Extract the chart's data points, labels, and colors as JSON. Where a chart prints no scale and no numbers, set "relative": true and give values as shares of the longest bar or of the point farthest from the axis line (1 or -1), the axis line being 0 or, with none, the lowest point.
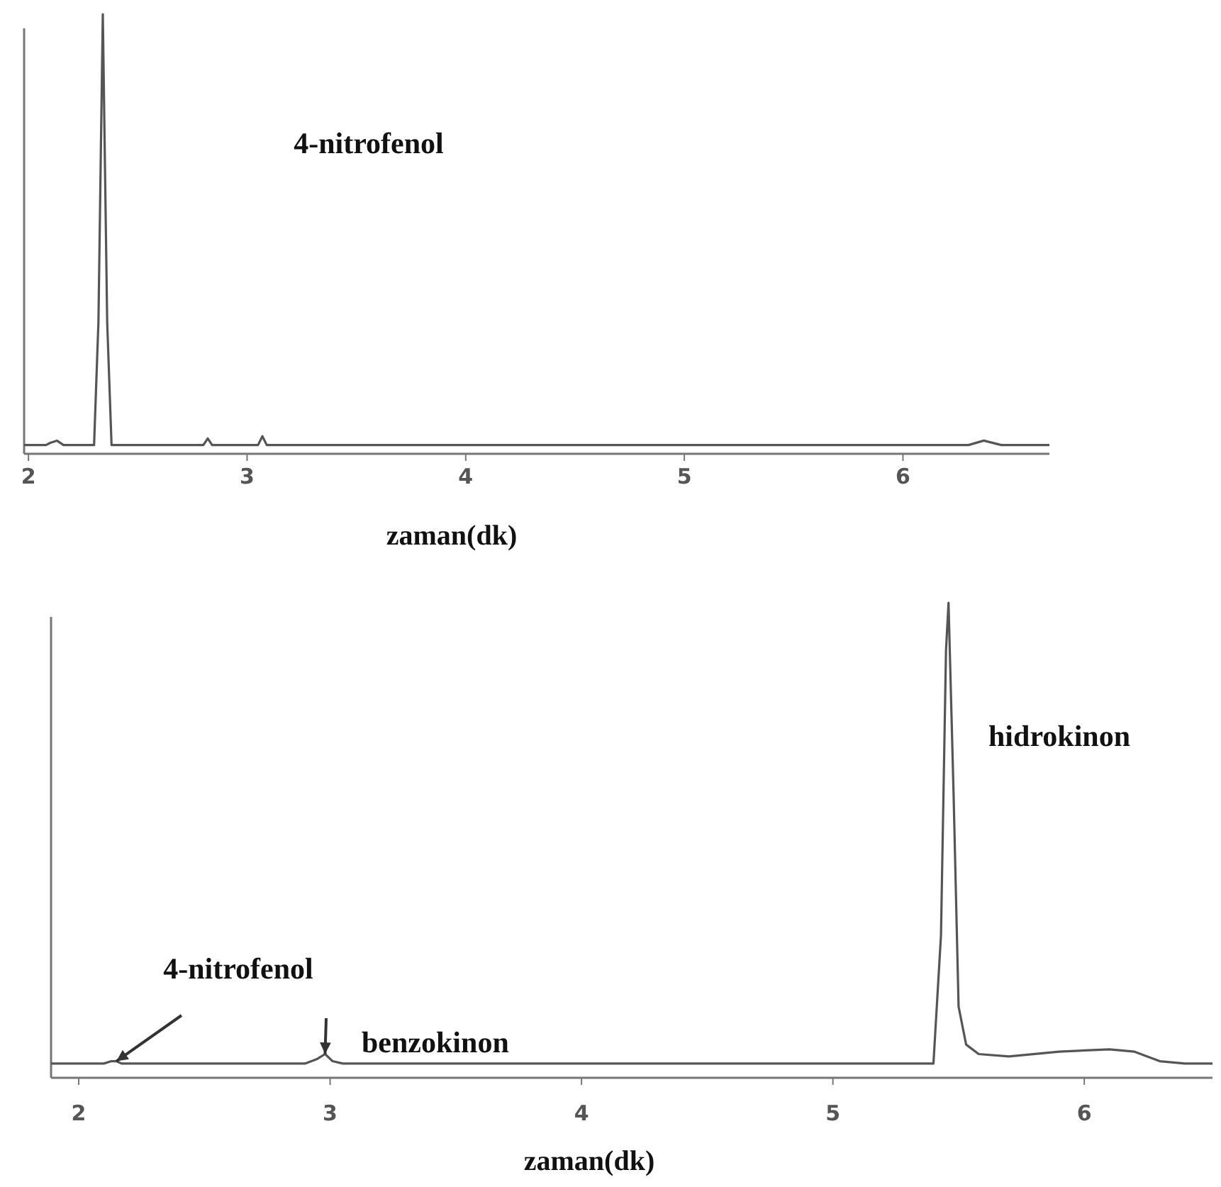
{
  "chart_data": [
    {
      "type": "line",
      "relative": true,
      "xlabel": "zaman(dk)",
      "xlim": [
        1.98,
        6.67
      ],
      "xticks": [
        2,
        3,
        4,
        5,
        6
      ],
      "grid": false,
      "marker": "none",
      "line_style": "solid",
      "tick_labels": "x",
      "series": [
        {
          "color": "#555555",
          "x": [
            1.98,
            2.08,
            2.1,
            2.13,
            2.16,
            2.3,
            2.32,
            2.34,
            2.36,
            2.38,
            2.6,
            2.8,
            2.82,
            2.84,
            3.05,
            3.07,
            3.09,
            3.5,
            4.0,
            4.5,
            5.0,
            5.5,
            6.0,
            6.3,
            6.37,
            6.45,
            6.67
          ],
          "values": [
            0.02,
            0.02,
            0.025,
            0.03,
            0.02,
            0.02,
            0.3,
            1,
            0.3,
            0.02,
            0.02,
            0.02,
            0.035,
            0.02,
            0.02,
            0.04,
            0.02,
            0.02,
            0.02,
            0.02,
            0.02,
            0.02,
            0.02,
            0.02,
            0.03,
            0.02,
            0.02
          ]
        }
      ],
      "annotations": [
        "4-nitrofenol"
      ]
    },
    {
      "type": "line",
      "relative": true,
      "xlabel": "zaman(dk)",
      "xlim": [
        1.89,
        6.51
      ],
      "xticks": [
        2,
        3,
        4,
        5,
        6
      ],
      "grid": false,
      "marker": "none",
      "line_style": "solid",
      "tick_labels": "x",
      "series": [
        {
          "color": "#555555",
          "x": [
            1.89,
            2.1,
            2.13,
            2.15,
            2.17,
            2.2,
            2.9,
            2.95,
            2.98,
            3.01,
            3.05,
            4.0,
            5.0,
            5.4,
            5.43,
            5.45,
            5.46,
            5.48,
            5.5,
            5.53,
            5.58,
            5.7,
            5.9,
            6.1,
            6.2,
            6.3,
            6.4,
            6.51
          ],
          "values": [
            0.03,
            0.03,
            0.035,
            0.035,
            0.03,
            0.03,
            0.03,
            0.04,
            0.05,
            0.035,
            0.03,
            0.03,
            0.03,
            0.03,
            0.3,
            0.9,
            1,
            0.6,
            0.15,
            0.07,
            0.05,
            0.045,
            0.055,
            0.06,
            0.055,
            0.035,
            0.03,
            0.03
          ]
        }
      ],
      "annotations": [
        {
          "text": "4-nitrofenol",
          "x": 2.15,
          "y": 0.035
        },
        {
          "text": "benzokinon",
          "x": 2.98,
          "y": 0.05
        },
        {
          "text": "hidrokinon",
          "x": 5.46,
          "y": 0.6
        }
      ]
    }
  ]
}
